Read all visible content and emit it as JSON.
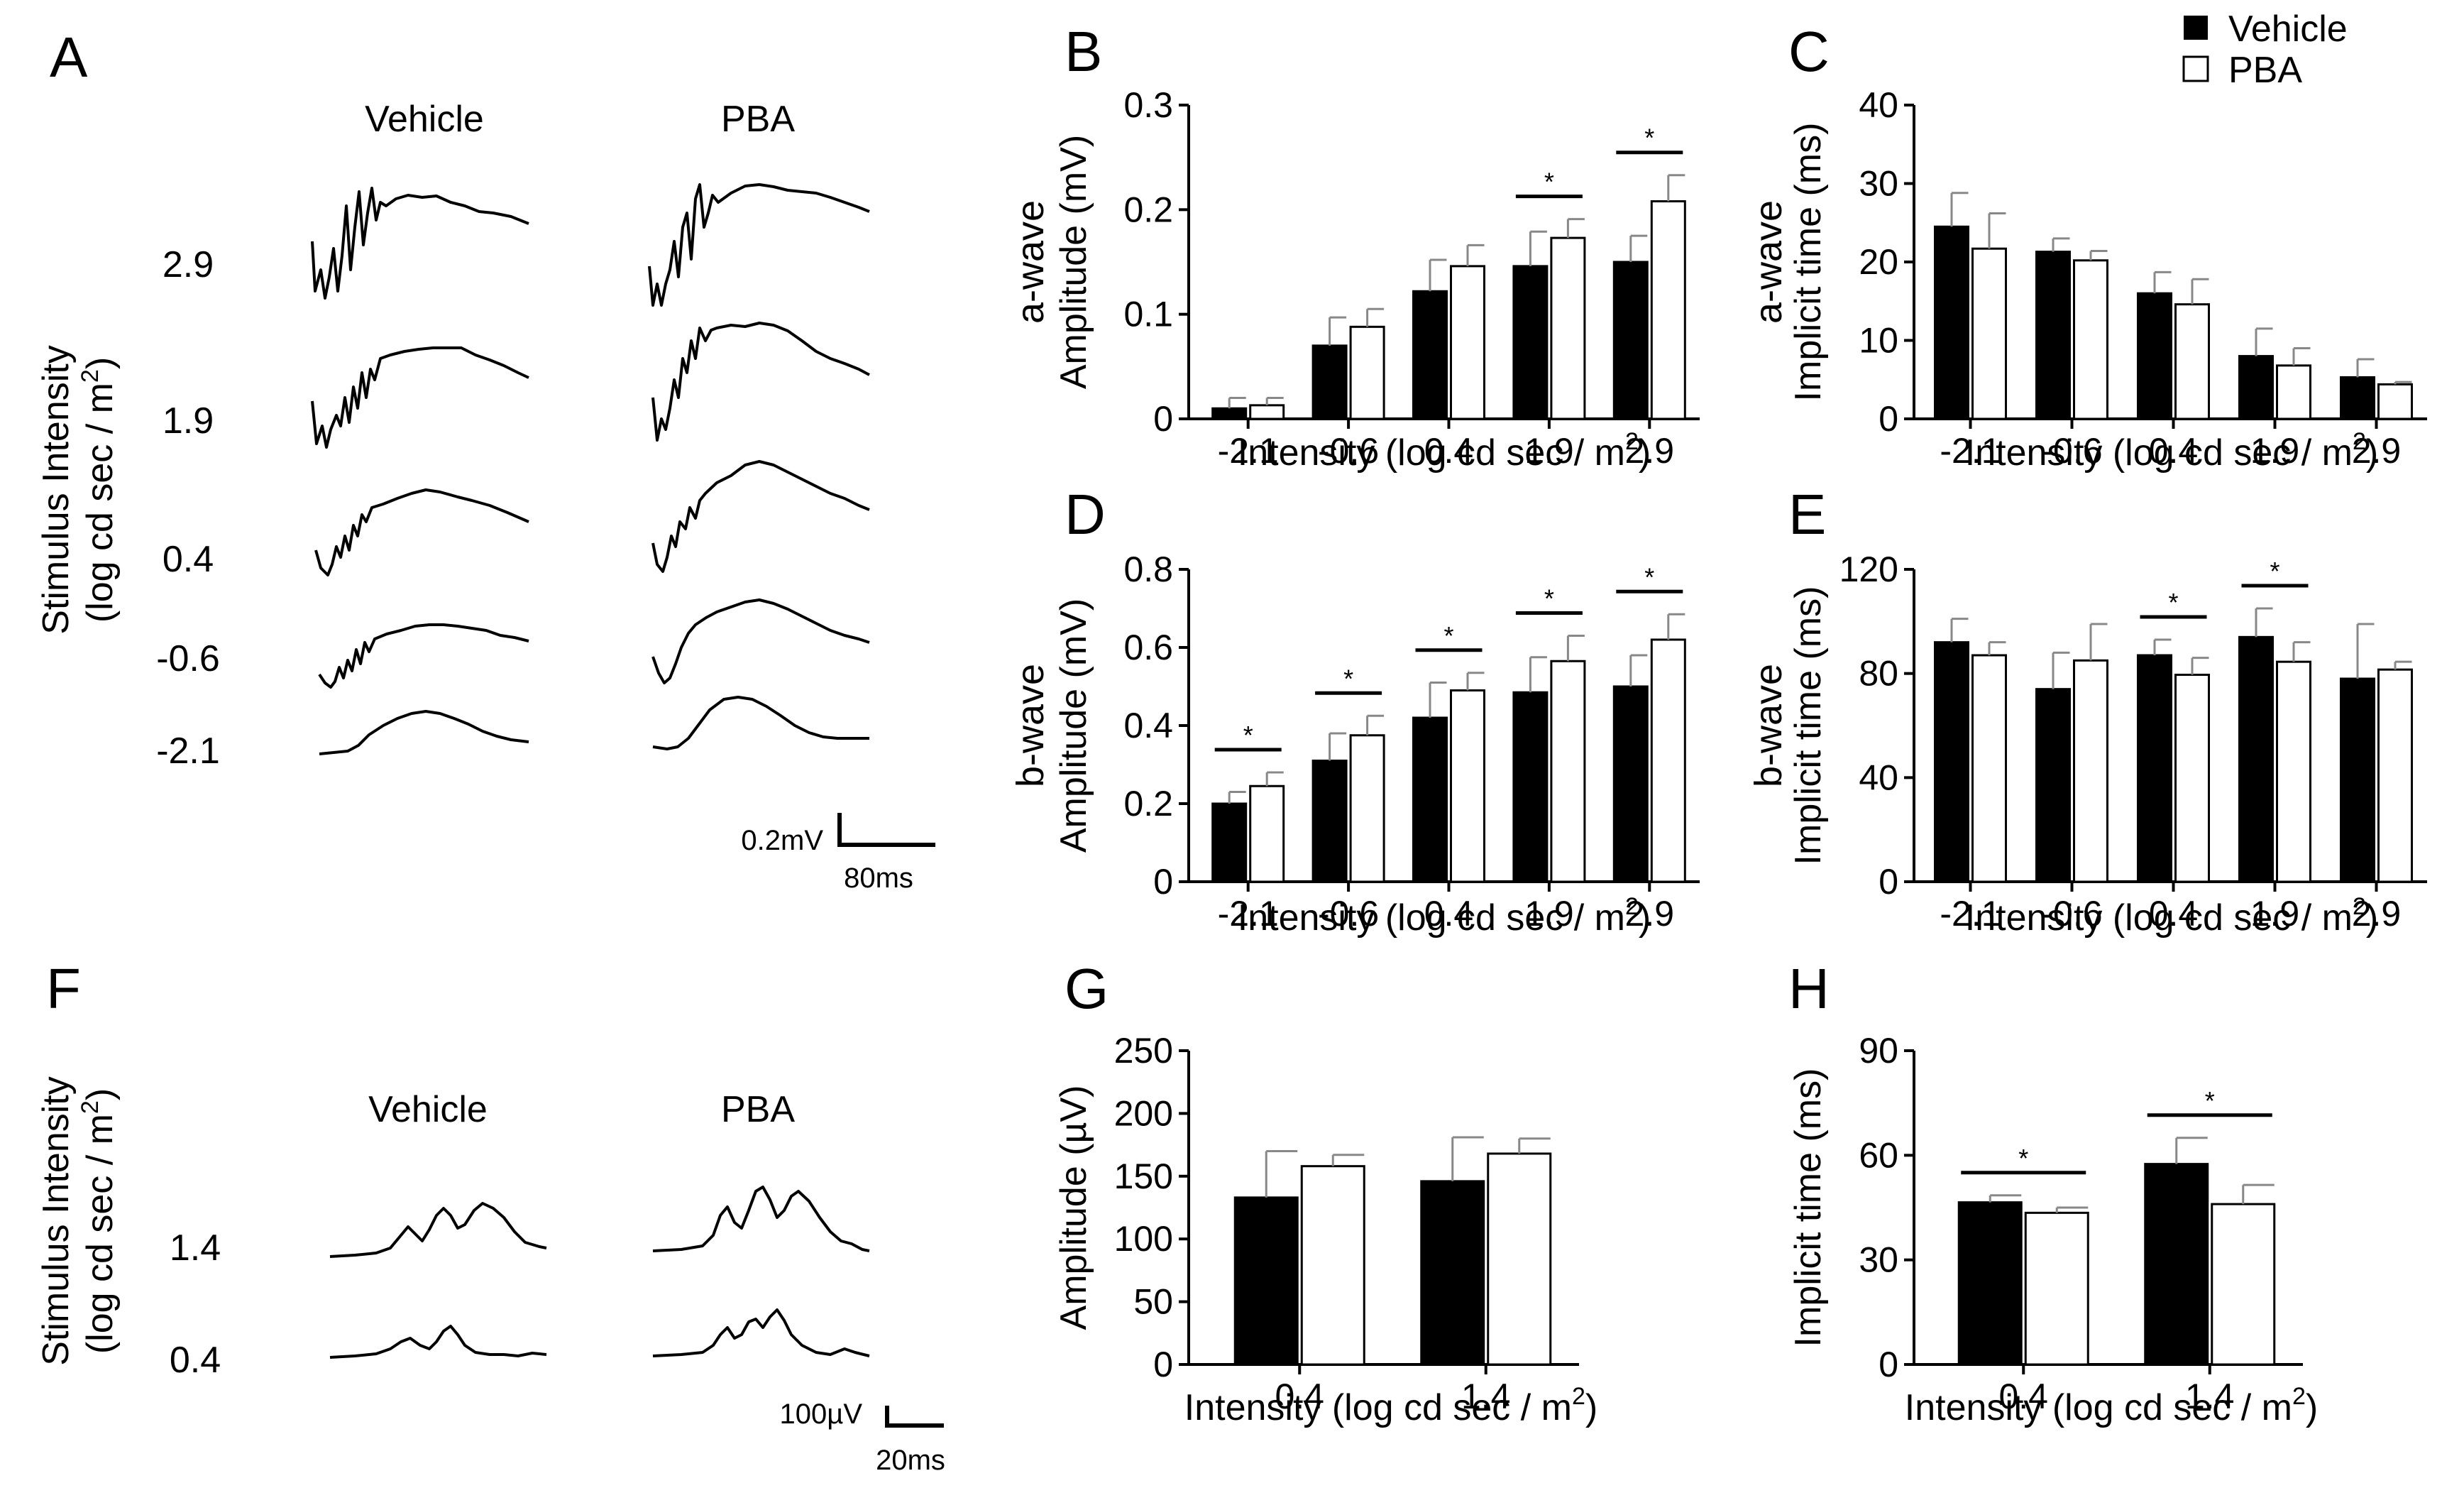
{
  "panel_letters": [
    "A",
    "B",
    "C",
    "D",
    "E",
    "F",
    "G",
    "H"
  ],
  "legend": {
    "vehicle": "Vehicle",
    "pba": "PBA"
  },
  "panel_A": {
    "col_vehicle": "Vehicle",
    "col_pba": "PBA",
    "ylabel_line1": "Stimulus Intensity",
    "ylabel_line2": "(log cd sec / m",
    "ylabel_sup": "2",
    "ylabel_end": ")",
    "rows": [
      "2.9",
      "1.9",
      "0.4",
      "-0.6",
      "-2.1"
    ],
    "scale_v": "0.2mV",
    "scale_t": "80ms"
  },
  "panel_F": {
    "col_vehicle": "Vehicle",
    "col_pba": "PBA",
    "ylabel_line1": "Stimulus Intensity",
    "ylabel_line2": "(log cd sec / m",
    "ylabel_sup": "2",
    "ylabel_end": ")",
    "rows": [
      "1.4",
      "0.4"
    ],
    "scale_v": "100µV",
    "scale_t": "20ms"
  },
  "xlabel_main": "Intensity (log cd sec / m",
  "xlabel_sup": "2",
  "xlabel_end": ")",
  "chart_data": [
    {
      "id": "B",
      "type": "bar",
      "categories": [
        "-2.1",
        "-0.6",
        "0.4",
        "1.9",
        "2.9"
      ],
      "series": [
        {
          "name": "Vehicle",
          "values": [
            0.01,
            0.07,
            0.122,
            0.146,
            0.15
          ],
          "errors": [
            0.01,
            0.027,
            0.03,
            0.033,
            0.025
          ]
        },
        {
          "name": "PBA",
          "values": [
            0.013,
            0.088,
            0.146,
            0.173,
            0.208
          ],
          "errors": [
            0.007,
            0.017,
            0.02,
            0.018,
            0.025
          ]
        }
      ],
      "ylabel1": "a-wave",
      "ylabel2": "Amplitude (mV)",
      "ylim": [
        0,
        0.3
      ],
      "yticks": [
        "0",
        "0.1",
        "0.2",
        "0.3"
      ],
      "significant": [
        3,
        4
      ],
      "sig_mark": "*"
    },
    {
      "id": "C",
      "type": "bar",
      "categories": [
        "-2.1",
        "-0.6",
        "0.4",
        "1.9",
        "2.9"
      ],
      "series": [
        {
          "name": "Vehicle",
          "values": [
            24.5,
            21.3,
            16,
            8,
            5.3
          ],
          "errors": [
            4.3,
            1.7,
            2.7,
            3.5,
            2.3
          ]
        },
        {
          "name": "PBA",
          "values": [
            21.7,
            20.2,
            14.6,
            6.8,
            4.4
          ],
          "errors": [
            4.5,
            1.2,
            3.2,
            2.2,
            0.3
          ]
        }
      ],
      "ylabel1": "a-wave",
      "ylabel2": "Implicit time (ms)",
      "ylim": [
        0,
        40
      ],
      "yticks": [
        "0",
        "10",
        "20",
        "30",
        "40"
      ],
      "significant": [],
      "sig_mark": "*"
    },
    {
      "id": "D",
      "type": "bar",
      "categories": [
        "-2.1",
        "-0.6",
        "0.4",
        "1.9",
        "2.9"
      ],
      "series": [
        {
          "name": "Vehicle",
          "values": [
            0.2,
            0.31,
            0.42,
            0.485,
            0.5
          ],
          "errors": [
            0.03,
            0.07,
            0.09,
            0.09,
            0.08
          ]
        },
        {
          "name": "PBA",
          "values": [
            0.245,
            0.375,
            0.49,
            0.565,
            0.62
          ],
          "errors": [
            0.035,
            0.05,
            0.045,
            0.065,
            0.065
          ]
        }
      ],
      "ylabel1": "b-wave",
      "ylabel2": "Amplitude (mV)",
      "ylim": [
        0,
        0.8
      ],
      "yticks": [
        "0",
        "0.2",
        "0.4",
        "0.6",
        "0.8"
      ],
      "significant": [
        0,
        1,
        2,
        3,
        4
      ],
      "sig_mark": "*"
    },
    {
      "id": "E",
      "type": "bar",
      "categories": [
        "-2.1",
        "-0.6",
        "0.4",
        "1.9",
        "2.9"
      ],
      "series": [
        {
          "name": "Vehicle",
          "values": [
            92,
            74,
            87,
            94,
            78
          ],
          "errors": [
            9,
            14,
            6,
            11,
            21
          ]
        },
        {
          "name": "PBA",
          "values": [
            87,
            85,
            79.5,
            84.5,
            81.5
          ],
          "errors": [
            5,
            14,
            6.5,
            7.5,
            3
          ]
        }
      ],
      "ylabel1": "b-wave",
      "ylabel2": "Implicit time (ms)",
      "ylim": [
        0,
        120
      ],
      "yticks": [
        "0",
        "40",
        "80",
        "120"
      ],
      "significant": [
        2,
        3
      ],
      "sig_mark": "*"
    },
    {
      "id": "G",
      "type": "bar",
      "categories": [
        "0.4",
        "1.4"
      ],
      "series": [
        {
          "name": "Vehicle",
          "values": [
            133,
            146
          ],
          "errors": [
            37,
            35
          ]
        },
        {
          "name": "PBA",
          "values": [
            158,
            168
          ],
          "errors": [
            9,
            12
          ]
        }
      ],
      "ylabel1": "",
      "ylabel2": "Amplitude (µV)",
      "ylim": [
        0,
        250
      ],
      "yticks": [
        "0",
        "50",
        "100",
        "150",
        "200",
        "250"
      ],
      "significant": [],
      "sig_mark": "*"
    },
    {
      "id": "H",
      "type": "bar",
      "categories": [
        "0.4",
        "1.4"
      ],
      "series": [
        {
          "name": "Vehicle",
          "values": [
            46.5,
            57.5
          ],
          "errors": [
            2,
            7.5
          ]
        },
        {
          "name": "PBA",
          "values": [
            43.5,
            46
          ],
          "errors": [
            1.5,
            5.5
          ]
        }
      ],
      "ylabel1": "",
      "ylabel2": "Implicit time (ms)",
      "ylim": [
        0,
        90
      ],
      "yticks": [
        "0",
        "30",
        "60",
        "90"
      ],
      "significant": [
        0,
        1
      ],
      "sig_mark": "*"
    }
  ]
}
